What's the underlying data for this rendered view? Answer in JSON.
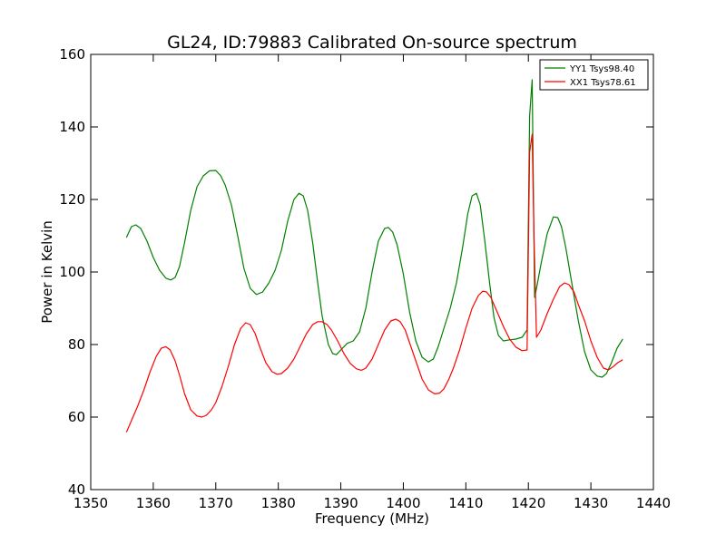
{
  "chart_data": {
    "type": "line",
    "title": "GL24, ID:79883 Calibrated On-source spectrum",
    "xlabel": "Frequency (MHz)",
    "ylabel": "Power in Kelvin",
    "xlim": [
      1350,
      1440
    ],
    "ylim": [
      40,
      160
    ],
    "xticks": [
      1350,
      1360,
      1370,
      1380,
      1390,
      1400,
      1410,
      1420,
      1430,
      1440
    ],
    "yticks": [
      40,
      60,
      80,
      100,
      120,
      140,
      160
    ],
    "grid": false,
    "legend_position": "top-right",
    "series": [
      {
        "name": "YY1 Tsys98.40",
        "color": "#008000",
        "x": [
          1355.7,
          1356.5,
          1357.2,
          1358.0,
          1359.0,
          1360.0,
          1361.0,
          1362.0,
          1362.8,
          1363.5,
          1364.2,
          1365.0,
          1366.0,
          1367.0,
          1368.0,
          1369.0,
          1370.0,
          1370.8,
          1371.5,
          1372.5,
          1373.5,
          1374.5,
          1375.5,
          1376.5,
          1377.5,
          1378.5,
          1379.5,
          1380.5,
          1381.5,
          1382.5,
          1383.3,
          1384.0,
          1384.7,
          1385.5,
          1386.3,
          1387.0,
          1388.0,
          1388.7,
          1389.3,
          1390.0,
          1391.0,
          1392.0,
          1393.0,
          1394.0,
          1395.0,
          1396.0,
          1397.0,
          1397.6,
          1398.3,
          1399.0,
          1400.0,
          1401.0,
          1402.0,
          1403.0,
          1404.0,
          1404.8,
          1405.6,
          1406.5,
          1407.5,
          1408.5,
          1409.5,
          1410.3,
          1411.0,
          1411.7,
          1412.3,
          1413.0,
          1413.8,
          1414.5,
          1415.2,
          1416.0,
          1417.0,
          1418.0,
          1419.0,
          1419.8,
          1420.2,
          1420.6,
          1421.0,
          1421.3,
          1422.0,
          1423.0,
          1424.0,
          1424.7,
          1425.3,
          1426.0,
          1427.0,
          1428.0,
          1429.0,
          1430.0,
          1431.0,
          1431.8,
          1432.5,
          1433.3,
          1434.2,
          1435.1
        ],
        "y": [
          109.5,
          112.5,
          113.0,
          112.0,
          108.5,
          104.0,
          100.5,
          98.3,
          97.8,
          98.5,
          101.5,
          108.0,
          117.0,
          123.5,
          126.5,
          127.9,
          128.0,
          126.5,
          124.0,
          118.5,
          110.0,
          101.0,
          95.5,
          93.8,
          94.5,
          97.0,
          100.5,
          106.0,
          114.0,
          120.0,
          121.7,
          121.0,
          117.0,
          108.0,
          97.0,
          88.0,
          80.0,
          77.5,
          77.2,
          78.5,
          80.3,
          81.0,
          83.5,
          90.0,
          100.0,
          108.5,
          112.0,
          112.3,
          111.0,
          107.5,
          99.5,
          89.0,
          81.0,
          76.5,
          75.2,
          76.0,
          79.5,
          84.5,
          90.0,
          97.0,
          107.0,
          116.0,
          121.0,
          121.7,
          118.5,
          109.0,
          97.0,
          87.5,
          82.5,
          81.0,
          81.3,
          81.5,
          82.0,
          84.0,
          143.0,
          153.0,
          93.0,
          95.5,
          102.0,
          110.5,
          115.2,
          115.0,
          112.5,
          106.5,
          96.5,
          86.5,
          78.0,
          73.0,
          71.3,
          71.0,
          72.0,
          75.0,
          79.0,
          81.5
        ]
      },
      {
        "name": "XX1 Tsys78.61",
        "color": "#ff0000",
        "x": [
          1355.7,
          1356.5,
          1357.5,
          1358.5,
          1359.5,
          1360.5,
          1361.3,
          1362.0,
          1362.7,
          1363.5,
          1364.3,
          1365.0,
          1366.0,
          1367.0,
          1367.8,
          1368.5,
          1369.3,
          1370.0,
          1371.0,
          1372.0,
          1373.0,
          1374.0,
          1374.8,
          1375.5,
          1376.3,
          1377.0,
          1378.0,
          1379.0,
          1379.8,
          1380.5,
          1381.5,
          1382.5,
          1383.5,
          1384.5,
          1385.5,
          1386.3,
          1387.0,
          1387.8,
          1388.5,
          1389.5,
          1390.5,
          1391.5,
          1392.5,
          1393.3,
          1394.0,
          1395.0,
          1396.0,
          1397.0,
          1398.0,
          1398.8,
          1399.5,
          1400.3,
          1401.0,
          1402.0,
          1403.0,
          1404.0,
          1405.0,
          1405.8,
          1406.5,
          1407.3,
          1408.0,
          1409.0,
          1410.0,
          1411.0,
          1412.0,
          1412.7,
          1413.3,
          1414.0,
          1415.0,
          1416.0,
          1417.0,
          1418.0,
          1419.0,
          1419.8,
          1420.2,
          1420.6,
          1420.9,
          1421.3,
          1422.0,
          1423.0,
          1424.0,
          1425.0,
          1425.8,
          1426.5,
          1427.3,
          1428.0,
          1429.0,
          1430.0,
          1431.0,
          1432.0,
          1432.8,
          1433.5,
          1434.3,
          1435.1
        ],
        "y": [
          55.8,
          59.0,
          63.0,
          67.5,
          72.5,
          76.8,
          79.0,
          79.4,
          78.5,
          75.5,
          71.0,
          66.5,
          62.0,
          60.3,
          60.0,
          60.5,
          62.0,
          64.0,
          68.5,
          74.0,
          80.0,
          84.5,
          86.0,
          85.5,
          83.0,
          79.5,
          75.0,
          72.5,
          71.8,
          72.0,
          73.5,
          76.0,
          79.5,
          83.0,
          85.5,
          86.3,
          86.3,
          85.5,
          84.0,
          81.0,
          77.5,
          74.8,
          73.3,
          72.9,
          73.5,
          76.0,
          80.0,
          84.0,
          86.5,
          87.0,
          86.3,
          84.0,
          80.5,
          75.5,
          70.5,
          67.5,
          66.4,
          66.6,
          67.8,
          70.5,
          73.5,
          78.5,
          84.5,
          90.0,
          93.5,
          94.7,
          94.5,
          93.0,
          89.0,
          85.0,
          81.5,
          79.3,
          78.3,
          78.5,
          133.0,
          138.0,
          110.0,
          82.0,
          84.0,
          88.5,
          92.5,
          96.0,
          97.0,
          96.5,
          94.5,
          91.0,
          86.5,
          81.0,
          76.5,
          73.5,
          73.0,
          73.8,
          75.0,
          75.8
        ]
      }
    ]
  }
}
